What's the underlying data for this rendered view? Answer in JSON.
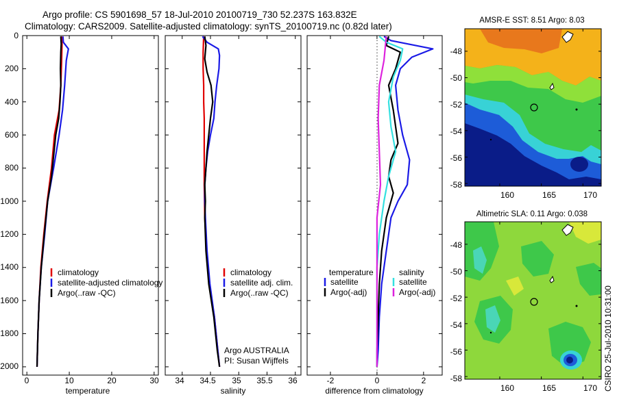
{
  "figure": {
    "title_line1": "Argo profile: CS 5901698_57 18-Jul-2010 20100719_730 52.237S 163.832E",
    "title_line2": "Climatology: CARS2009. Satellite-adjusted climatology: synTS_20100719.nc (0.82d later)",
    "credit": "CSIRO 25-Jul-2010 10:31:00"
  },
  "colors": {
    "red": "#e00000",
    "blue": "#1a1ae6",
    "black": "#000000",
    "cyan": "#33e0e0",
    "magenta": "#dd22dd"
  },
  "chart_data": [
    {
      "type": "line",
      "id": "temperature",
      "xlabel": "temperature",
      "xlim": [
        -1,
        31
      ],
      "ylim": [
        2050,
        0
      ],
      "xticks": [
        0,
        10,
        20,
        30
      ],
      "yticks": [
        0,
        200,
        400,
        600,
        800,
        1000,
        1200,
        1400,
        1600,
        1800,
        2000
      ],
      "legend": [
        "climatology",
        "satellite-adjusted climatology",
        "Argo(..raw -QC)"
      ],
      "series": [
        {
          "name": "climatology",
          "color": "red",
          "points": [
            [
              8.2,
              5
            ],
            [
              8.3,
              50
            ],
            [
              8.2,
              150
            ],
            [
              8.0,
              300
            ],
            [
              7.6,
              450
            ],
            [
              6.5,
              600
            ],
            [
              5.8,
              800
            ],
            [
              4.8,
              1000
            ],
            [
              4.0,
              1200
            ],
            [
              3.3,
              1400
            ],
            [
              2.9,
              1600
            ],
            [
              2.6,
              1800
            ],
            [
              2.4,
              2000
            ]
          ]
        },
        {
          "name": "satellite-adjusted climatology",
          "color": "blue",
          "points": [
            [
              8.5,
              5
            ],
            [
              8.6,
              40
            ],
            [
              9.8,
              80
            ],
            [
              9.3,
              150
            ],
            [
              8.9,
              300
            ],
            [
              8.4,
              450
            ],
            [
              7.6,
              600
            ],
            [
              6.3,
              800
            ],
            [
              4.9,
              1000
            ],
            [
              4.2,
              1200
            ],
            [
              3.4,
              1400
            ],
            [
              2.9,
              1600
            ],
            [
              2.6,
              1800
            ],
            [
              2.4,
              2000
            ]
          ]
        },
        {
          "name": "Argo(..raw -QC)",
          "color": "black",
          "points": [
            [
              8.0,
              5
            ],
            [
              8.1,
              50
            ],
            [
              8.0,
              100
            ],
            [
              7.9,
              200
            ],
            [
              8.0,
              300
            ],
            [
              7.8,
              400
            ],
            [
              7.5,
              500
            ],
            [
              6.8,
              600
            ],
            [
              6.2,
              750
            ],
            [
              5.8,
              850
            ],
            [
              4.9,
              1000
            ],
            [
              4.1,
              1200
            ],
            [
              3.4,
              1400
            ],
            [
              2.9,
              1600
            ],
            [
              2.6,
              1800
            ],
            [
              2.4,
              2000
            ]
          ]
        }
      ]
    },
    {
      "type": "line",
      "id": "salinity",
      "xlabel": "salinity",
      "xlim": [
        33.7,
        36.1
      ],
      "ylim": [
        2050,
        0
      ],
      "xticks": [
        34,
        34.5,
        35,
        35.5,
        36
      ],
      "legend": [
        "climatology",
        "satellite adj. clim.",
        "Argo(..raw -QC)"
      ],
      "annotation": [
        "Argo AUSTRALIA",
        "PI: Susan Wijffels"
      ],
      "series": [
        {
          "name": "climatology",
          "color": "red",
          "points": [
            [
              34.38,
              5
            ],
            [
              34.37,
              100
            ],
            [
              34.37,
              200
            ],
            [
              34.38,
              300
            ],
            [
              34.38,
              400
            ],
            [
              34.39,
              500
            ],
            [
              34.39,
              700
            ],
            [
              34.39,
              900
            ],
            [
              34.4,
              1100
            ],
            [
              34.43,
              1300
            ],
            [
              34.48,
              1500
            ],
            [
              34.57,
              1700
            ],
            [
              34.63,
              1900
            ],
            [
              34.66,
              2000
            ]
          ]
        },
        {
          "name": "satellite adj. clim.",
          "color": "blue",
          "points": [
            [
              34.36,
              5
            ],
            [
              34.44,
              40
            ],
            [
              34.64,
              80
            ],
            [
              34.66,
              120
            ],
            [
              34.65,
              200
            ],
            [
              34.61,
              300
            ],
            [
              34.58,
              400
            ],
            [
              34.56,
              500
            ],
            [
              34.5,
              600
            ],
            [
              34.45,
              700
            ],
            [
              34.42,
              800
            ],
            [
              34.4,
              900
            ],
            [
              34.4,
              1000
            ],
            [
              34.41,
              1100
            ],
            [
              34.44,
              1300
            ],
            [
              34.49,
              1500
            ],
            [
              34.57,
              1700
            ],
            [
              34.63,
              1900
            ],
            [
              34.66,
              2000
            ]
          ]
        },
        {
          "name": "Argo(..raw -QC)",
          "color": "black",
          "points": [
            [
              34.4,
              5
            ],
            [
              34.42,
              60
            ],
            [
              34.4,
              140
            ],
            [
              34.44,
              220
            ],
            [
              34.51,
              300
            ],
            [
              34.54,
              400
            ],
            [
              34.5,
              500
            ],
            [
              34.47,
              600
            ],
            [
              34.44,
              700
            ],
            [
              34.42,
              800
            ],
            [
              34.4,
              900
            ],
            [
              34.41,
              1000
            ],
            [
              34.4,
              1100
            ],
            [
              34.42,
              1300
            ],
            [
              34.47,
              1500
            ],
            [
              34.56,
              1700
            ],
            [
              34.62,
              1900
            ],
            [
              34.66,
              2000
            ]
          ]
        }
      ]
    },
    {
      "type": "line",
      "id": "difference",
      "xlabel": "difference from climatology",
      "xlim": [
        -3,
        2.8
      ],
      "ylim": [
        2050,
        0
      ],
      "xticks": [
        -2,
        0,
        2
      ],
      "legend_temperature": {
        "heading": "temperature",
        "items": [
          "satellite",
          "Argo(-adj)"
        ]
      },
      "legend_salinity": {
        "heading": "salinity",
        "items": [
          "satellite",
          "Argo(-adj)"
        ]
      },
      "series": [
        {
          "name": "temperature satellite",
          "color": "blue",
          "points": [
            [
              0.3,
              5
            ],
            [
              0.6,
              30
            ],
            [
              2.4,
              80
            ],
            [
              1.5,
              130
            ],
            [
              1.0,
              200
            ],
            [
              0.8,
              300
            ],
            [
              0.9,
              450
            ],
            [
              1.1,
              600
            ],
            [
              1.4,
              750
            ],
            [
              1.3,
              900
            ],
            [
              0.9,
              1000
            ],
            [
              0.6,
              1100
            ],
            [
              0.4,
              1300
            ],
            [
              0.2,
              1500
            ],
            [
              0.1,
              1700
            ],
            [
              0.05,
              1900
            ],
            [
              0.0,
              2000
            ]
          ]
        },
        {
          "name": "temperature Argo(-adj)",
          "color": "black",
          "points": [
            [
              0.5,
              5
            ],
            [
              0.4,
              60
            ],
            [
              1.0,
              100
            ],
            [
              0.8,
              200
            ],
            [
              0.5,
              300
            ],
            [
              0.7,
              450
            ],
            [
              0.8,
              550
            ],
            [
              0.9,
              650
            ],
            [
              0.6,
              750
            ],
            [
              0.5,
              850
            ],
            [
              0.7,
              950
            ],
            [
              0.4,
              1100
            ],
            [
              0.2,
              1300
            ],
            [
              0.1,
              1500
            ],
            [
              0.05,
              1700
            ],
            [
              0.0,
              1900
            ],
            [
              0.0,
              2000
            ]
          ]
        },
        {
          "name": "salinity satellite",
          "color": "cyan",
          "points": [
            [
              0.1,
              5
            ],
            [
              0.4,
              40
            ],
            [
              1.1,
              80
            ],
            [
              1.0,
              150
            ],
            [
              0.7,
              250
            ],
            [
              0.5,
              400
            ],
            [
              0.6,
              550
            ],
            [
              0.8,
              700
            ],
            [
              0.5,
              850
            ],
            [
              0.3,
              1000
            ],
            [
              0.1,
              1200
            ],
            [
              0.0,
              1400
            ],
            [
              0.0,
              1700
            ],
            [
              0.0,
              2000
            ]
          ]
        },
        {
          "name": "salinity Argo(-adj)",
          "color": "magenta",
          "points": [
            [
              0.4,
              5
            ],
            [
              0.3,
              150
            ],
            [
              0.1,
              300
            ],
            [
              0.05,
              500
            ],
            [
              0.1,
              700
            ],
            [
              0.15,
              900
            ],
            [
              0.0,
              1100
            ],
            [
              0.0,
              1300
            ],
            [
              0.0,
              1700
            ],
            [
              0.0,
              2000
            ]
          ]
        }
      ]
    },
    {
      "type": "heatmap",
      "id": "sst_map",
      "title": "AMSR-E SST: 8.51 Argo: 8.03",
      "xticks": [
        160,
        165,
        170
      ],
      "yticks": [
        -48,
        -50,
        -52,
        -54,
        -56,
        -58
      ],
      "xlim": [
        155.8,
        172.2
      ],
      "ylim": [
        -58.2,
        -46.3
      ],
      "profile_location": [
        163.832,
        -52.237
      ]
    },
    {
      "type": "heatmap",
      "id": "sla_map",
      "title": "Altimetric SLA: 0.11 Argo: 0.038",
      "xticks": [
        160,
        165,
        170
      ],
      "yticks": [
        -48,
        -50,
        -52,
        -54,
        -56,
        -58
      ],
      "xlim": [
        155.8,
        172.2
      ],
      "ylim": [
        -58.2,
        -46.3
      ],
      "profile_location": [
        163.832,
        -52.237
      ]
    }
  ]
}
